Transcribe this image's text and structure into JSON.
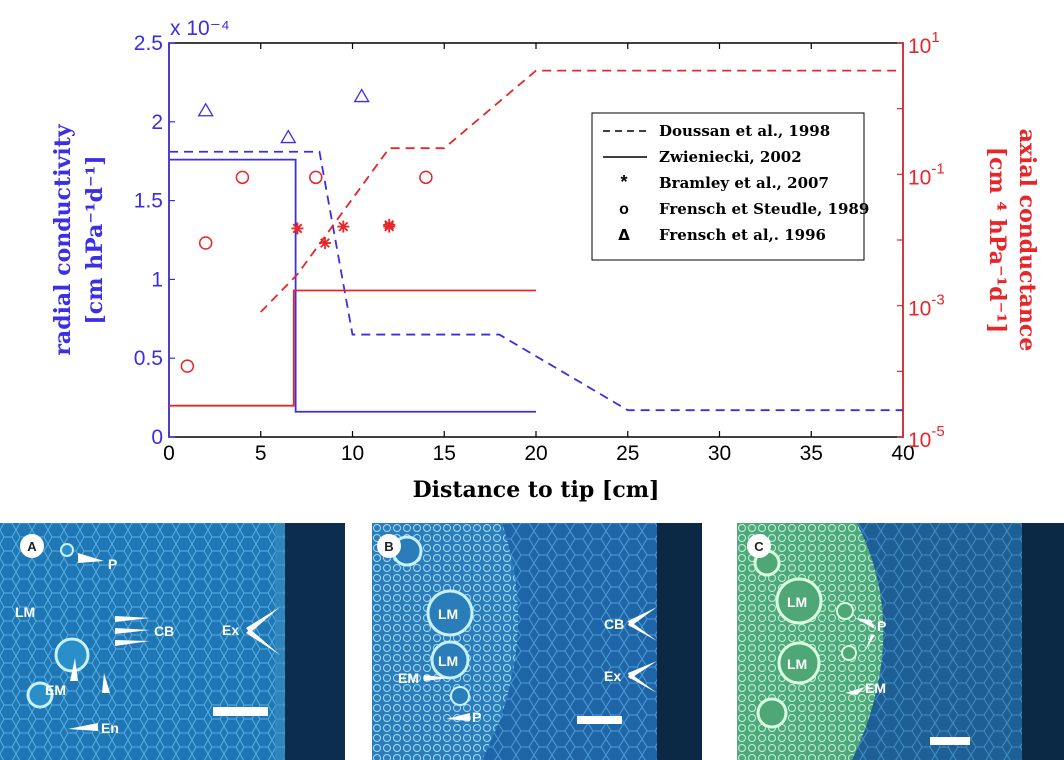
{
  "chart_data": {
    "type": "line",
    "xlabel": "Distance to tip [cm]",
    "xlim": [
      0,
      40
    ],
    "x_ticks": [
      "0",
      "5",
      "10",
      "15",
      "20",
      "25",
      "30",
      "35",
      "40"
    ],
    "left_axis": {
      "label_line1": "radial conductivity",
      "label_line2": "[cm hPa⁻¹d⁻¹]",
      "multiplier": "x 10⁻⁴",
      "ylim": [
        0,
        2.5
      ],
      "ticks": [
        0,
        0.5,
        1,
        1.5,
        2,
        2.5
      ],
      "tick_labels": [
        "0",
        "0.5",
        "1",
        "1.5",
        "2",
        "2.5"
      ],
      "color": "#3a2ee6"
    },
    "right_axis": {
      "label_line1": "axial conductance",
      "label_line2": "[cm ⁴ hPa⁻¹d⁻¹]",
      "scale": "log",
      "ylim": [
        1e-05,
        10
      ],
      "tick_labels": [
        {
          "value": 1e-05,
          "base": "10",
          "exp": "-5"
        },
        {
          "value": 0.001,
          "base": "10",
          "exp": "-3"
        },
        {
          "value": 0.1,
          "base": "10",
          "exp": "-1"
        },
        {
          "value": 10,
          "base": "10",
          "exp": "1"
        }
      ],
      "color": "#e8262a"
    },
    "legend": {
      "placement": "top-right",
      "entries": [
        {
          "symbol": "dashed",
          "label": "Doussan et al., 1998"
        },
        {
          "symbol": "solid",
          "label": "Zwieniecki, 2002"
        },
        {
          "symbol": "*",
          "label": "Bramley et al., 2007"
        },
        {
          "symbol": "o",
          "label": "Frensch et Steudle, 1989"
        },
        {
          "symbol": "Δ",
          "label": "Frensch et al,. 1996"
        }
      ]
    },
    "series": [
      {
        "axis": "left",
        "color": "#3a2ee6",
        "style": "dashed",
        "x": [
          0,
          8.2,
          10,
          18,
          25,
          40
        ],
        "y": [
          1.81,
          1.81,
          0.65,
          0.65,
          0.17,
          0.17
        ]
      },
      {
        "axis": "left",
        "color": "#3a2ee6",
        "style": "solid",
        "x": [
          0,
          6.9,
          6.9,
          20
        ],
        "y": [
          1.76,
          1.76,
          0.16,
          0.16
        ]
      },
      {
        "axis": "left",
        "color": "#3a2ee6",
        "style": "triangle",
        "x": [
          2,
          6.5,
          10.5
        ],
        "y": [
          2.07,
          1.9,
          2.16
        ]
      },
      {
        "axis": "right",
        "color": "#e8262a",
        "style": "dashed",
        "x": [
          5,
          7,
          12,
          15,
          20,
          40
        ],
        "y": [
          0.0008,
          0.003,
          0.25,
          0.25,
          3.8,
          3.8
        ]
      },
      {
        "axis": "right",
        "color": "#e8262a",
        "style": "solid",
        "x": [
          0,
          6.8,
          6.8,
          20
        ],
        "y": [
          3e-05,
          3e-05,
          0.0017,
          0.0017
        ]
      },
      {
        "axis": "right",
        "color": "#e8262a",
        "style": "circle",
        "x": [
          1,
          2,
          4,
          8,
          14
        ],
        "y": [
          0.00012,
          0.009,
          0.09,
          0.09,
          0.09
        ]
      },
      {
        "axis": "right",
        "color": "#e8262a",
        "style": "star",
        "x": [
          7,
          8.5,
          9.5,
          12,
          12
        ],
        "y": [
          0.015,
          0.009,
          0.016,
          0.016,
          0.017
        ]
      }
    ]
  },
  "micrographs": [
    {
      "panel": "A",
      "labels": [
        "P",
        "LM",
        "CB",
        "Ex",
        "EM",
        "En"
      ]
    },
    {
      "panel": "B",
      "labels": [
        "LM",
        "LM",
        "CB",
        "Ex",
        "EM",
        "P"
      ]
    },
    {
      "panel": "C",
      "labels": [
        "LM",
        "P",
        "LM",
        "EM"
      ]
    }
  ]
}
